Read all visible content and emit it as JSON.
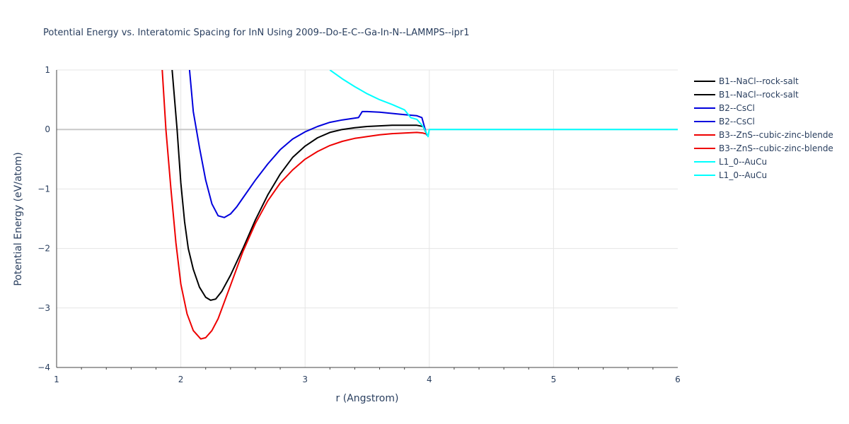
{
  "chart_data": {
    "type": "line",
    "title": "Potential Energy vs. Interatomic Spacing for InN Using 2009--Do-E-C--Ga-In-N--LAMMPS--ipr1",
    "xlabel": "r (Angstrom)",
    "ylabel": "Potential Energy (eV/atom)",
    "xlim": [
      1,
      6
    ],
    "ylim": [
      -4,
      1
    ],
    "xticks": [
      "1",
      "2",
      "3",
      "4",
      "5",
      "6"
    ],
    "yticks": [
      "−4",
      "−3",
      "−2",
      "−1",
      "0",
      "1"
    ],
    "grid": true,
    "legend_position": "right",
    "series": [
      {
        "name": "B1--NaCl--rock-salt",
        "color": "#000000",
        "x": [
          1.93,
          1.97,
          2.0,
          2.03,
          2.06,
          2.1,
          2.15,
          2.2,
          2.24,
          2.28,
          2.33,
          2.4,
          2.5,
          2.6,
          2.7,
          2.8,
          2.9,
          3.0,
          3.1,
          3.2,
          3.3,
          3.4,
          3.5,
          3.6,
          3.7,
          3.8,
          3.9,
          3.95,
          3.98
        ],
        "y": [
          1.0,
          0.0,
          -0.9,
          -1.55,
          -2.0,
          -2.35,
          -2.65,
          -2.82,
          -2.87,
          -2.85,
          -2.72,
          -2.45,
          -2.0,
          -1.52,
          -1.1,
          -0.75,
          -0.47,
          -0.28,
          -0.14,
          -0.05,
          0.0,
          0.03,
          0.05,
          0.06,
          0.07,
          0.07,
          0.07,
          0.05,
          -0.08
        ]
      },
      {
        "name": "B1--NaCl--rock-salt",
        "color": "#000000",
        "x": [],
        "y": []
      },
      {
        "name": "B2--CsCl",
        "color": "#0000dd",
        "x": [
          2.07,
          2.1,
          2.15,
          2.2,
          2.25,
          2.3,
          2.35,
          2.4,
          2.45,
          2.5,
          2.6,
          2.7,
          2.8,
          2.9,
          3.0,
          3.1,
          3.2,
          3.3,
          3.43,
          3.46,
          3.5,
          3.6,
          3.7,
          3.8,
          3.9,
          3.94,
          3.96,
          3.98
        ],
        "y": [
          1.0,
          0.3,
          -0.3,
          -0.85,
          -1.25,
          -1.45,
          -1.48,
          -1.42,
          -1.3,
          -1.15,
          -0.85,
          -0.58,
          -0.34,
          -0.16,
          -0.04,
          0.05,
          0.12,
          0.16,
          0.2,
          0.3,
          0.3,
          0.29,
          0.27,
          0.25,
          0.23,
          0.2,
          0.05,
          -0.1
        ]
      },
      {
        "name": "B2--CsCl",
        "color": "#0000dd",
        "x": [],
        "y": []
      },
      {
        "name": "B3--ZnS--cubic-zinc-blende",
        "color": "#ee0000",
        "x": [
          1.85,
          1.88,
          1.92,
          1.96,
          2.0,
          2.05,
          2.1,
          2.16,
          2.2,
          2.25,
          2.3,
          2.4,
          2.5,
          2.6,
          2.7,
          2.8,
          2.9,
          3.0,
          3.1,
          3.2,
          3.3,
          3.4,
          3.5,
          3.6,
          3.7,
          3.8,
          3.9,
          3.95,
          3.98
        ],
        "y": [
          1.0,
          0.0,
          -1.0,
          -1.9,
          -2.6,
          -3.1,
          -3.38,
          -3.52,
          -3.5,
          -3.38,
          -3.18,
          -2.62,
          -2.05,
          -1.58,
          -1.2,
          -0.9,
          -0.68,
          -0.5,
          -0.37,
          -0.27,
          -0.2,
          -0.15,
          -0.12,
          -0.09,
          -0.07,
          -0.06,
          -0.05,
          -0.06,
          -0.08
        ]
      },
      {
        "name": "B3--ZnS--cubic-zinc-blende",
        "color": "#ee0000",
        "x": [],
        "y": []
      },
      {
        "name": "L1_0--AuCu",
        "color": "#00ffff",
        "x": [
          3.2,
          3.3,
          3.4,
          3.5,
          3.6,
          3.7,
          3.8,
          3.85,
          3.9,
          3.95,
          3.97,
          3.99,
          4.0,
          4.05,
          4.5,
          5.0,
          5.5,
          6.0
        ],
        "y": [
          1.0,
          0.85,
          0.72,
          0.6,
          0.5,
          0.42,
          0.33,
          0.2,
          0.17,
          0.05,
          -0.03,
          -0.12,
          0.0,
          0.0,
          0.0,
          0.0,
          0.0,
          0.0
        ]
      },
      {
        "name": "L1_0--AuCu",
        "color": "#00ffff",
        "x": [],
        "y": []
      }
    ]
  }
}
